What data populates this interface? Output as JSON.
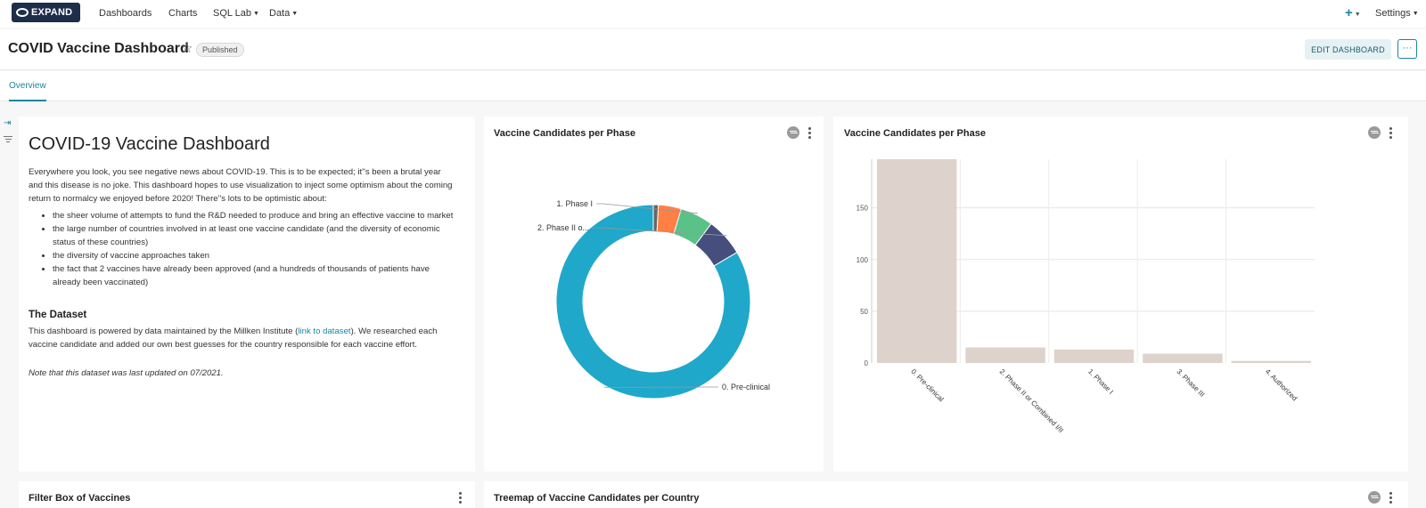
{
  "navbar": {
    "logo_text": "EXPAND",
    "items": [
      "Dashboards",
      "Charts",
      "SQL Lab",
      "Data"
    ],
    "settings_label": "Settings",
    "add_label": "+"
  },
  "header": {
    "title": "COVID Vaccine Dashboard",
    "status_badge": "Published",
    "edit_button": "EDIT DASHBOARD",
    "more_label": "···"
  },
  "tabs": [
    {
      "label": "Overview",
      "active": true
    }
  ],
  "markdown": {
    "heading": "COVID-19 Vaccine Dashboard",
    "intro": "Everywhere you look, you see negative news about COVID-19. This is to be expected; it''s been a brutal year and this disease is no joke. This dashboard hopes to use visualization to inject some optimism about the coming return to normalcy we enjoyed before 2020! There''s lots to be optimistic about:",
    "bullets": [
      "the sheer volume of attempts to fund the R&D needed to produce and bring an effective vaccine to market",
      "the large number of countries involved in at least one vaccine candidate (and the diversity of economic status of these countries)",
      "the diversity of vaccine approaches taken",
      "the fact that 2 vaccines have already been approved (and a hundreds of thousands of patients have already been vaccinated)"
    ],
    "dataset_heading": "The Dataset",
    "dataset_text_before": "This dashboard is powered by data maintained by the Millken Institute (",
    "dataset_link": "link to dataset",
    "dataset_text_after": "). We researched each vaccine candidate and added our own best guesses for the country responsible for each vaccine effort.",
    "note": "Note that this dataset was last updated on 07/2021."
  },
  "cards": {
    "donut_title": "Vaccine Candidates per Phase",
    "bar_title": "Vaccine Candidates per Phase",
    "filter_box_title": "Filter Box of Vaccines",
    "treemap_title": "Treemap of Vaccine Candidates per Country"
  },
  "chart_data": [
    {
      "type": "pie",
      "title": "Vaccine Candidates per Phase",
      "donut": true,
      "categories": [
        "0. Pre-clinical",
        "2. Phase II or Combined I/II",
        "1. Phase I",
        "3. Phase III",
        "4. Authorized"
      ],
      "values": [
        197,
        15,
        13,
        9,
        2
      ],
      "colors": [
        "#1fa8c9",
        "#454e7c",
        "#5ac189",
        "#ff7f44",
        "#666666"
      ],
      "visible_labels": [
        "0. Pre-clinical",
        "2. Phase II o...",
        "1. Phase I"
      ]
    },
    {
      "type": "bar",
      "title": "Vaccine Candidates per Phase",
      "categories": [
        "0. Pre-clinical",
        "2. Phase II or Combined I/II",
        "1. Phase I",
        "3. Phase III",
        "4. Authorized"
      ],
      "values": [
        197,
        15,
        13,
        9,
        2
      ],
      "yticks": [
        0,
        50,
        100,
        150
      ],
      "ylim": [
        0,
        197
      ],
      "bar_color": "#ddd3cc"
    }
  ]
}
